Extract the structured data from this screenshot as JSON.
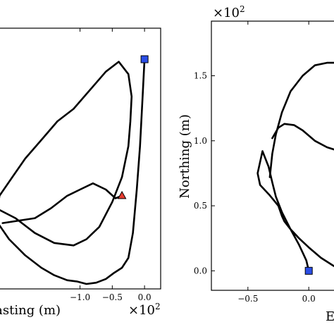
{
  "chart_data": [
    {
      "type": "line",
      "title": "",
      "xlabel": "Easting (m)",
      "ylabel": "",
      "x_offset_label": "×10",
      "x_offset_exp": "2",
      "xlim": [
        -2.35,
        0.25
      ],
      "ylim": [
        -0.85,
        1.25
      ],
      "x_ticks": [
        -1.0,
        -0.5,
        0.0
      ],
      "x_tick_labels": [
        "−1.0",
        "−0.5",
        "0.0"
      ],
      "y_ticks": [],
      "grid": false,
      "series": [
        {
          "x": [
            0.0,
            -0.03,
            -0.07,
            -0.12,
            -0.18,
            -0.25,
            -0.35,
            -0.47,
            -0.6,
            -0.75,
            -0.9,
            -1.05,
            -1.2,
            -1.4,
            -1.6,
            -1.85,
            -2.1,
            -2.3,
            -2.25,
            -2.05,
            -1.85,
            -1.6,
            -1.35,
            -1.1,
            -0.85,
            -0.6,
            -0.4,
            -0.25,
            -0.2,
            -0.22,
            -0.25,
            -0.35,
            -0.5,
            -0.7,
            -0.9,
            -1.1,
            -1.4,
            -1.7,
            -2.0,
            -2.3
          ],
          "y": [
            1.0,
            0.7,
            0.3,
            -0.05,
            -0.4,
            -0.6,
            -0.68,
            -0.72,
            -0.77,
            -0.8,
            -0.81,
            -0.79,
            -0.78,
            -0.74,
            -0.68,
            -0.58,
            -0.45,
            -0.3,
            -0.1,
            0.05,
            0.2,
            0.35,
            0.5,
            0.6,
            0.75,
            0.9,
            0.98,
            0.88,
            0.7,
            0.5,
            0.3,
            0.05,
            -0.15,
            -0.35,
            -0.45,
            -0.5,
            -0.48,
            -0.4,
            -0.28,
            -0.2
          ],
          "color": "#000000"
        },
        {
          "x": [
            -0.35,
            -0.45,
            -0.6,
            -0.8,
            -1.0,
            -1.2,
            -1.45,
            -1.7,
            -1.95,
            -2.2
          ],
          "y": [
            -0.1,
            -0.12,
            -0.05,
            0.0,
            -0.05,
            -0.1,
            -0.2,
            -0.28,
            -0.3,
            -0.32
          ],
          "color": "#000000"
        }
      ],
      "markers": [
        {
          "shape": "square",
          "x": 0.0,
          "y": 1.0,
          "color": "#2b4ee6"
        },
        {
          "shape": "triangle",
          "x": -0.35,
          "y": -0.1,
          "color": "#e53a2e"
        }
      ]
    },
    {
      "type": "line",
      "title": "",
      "xlabel": "E",
      "ylabel": "Northing (m)",
      "y_offset_label": "×10",
      "y_offset_exp": "2",
      "xlim": [
        -0.8,
        0.3
      ],
      "ylim": [
        -0.15,
        1.92
      ],
      "x_ticks": [
        -0.5,
        0.0
      ],
      "x_tick_labels": [
        "−0.5",
        "0.0"
      ],
      "y_ticks": [
        0.0,
        0.5,
        1.0,
        1.5
      ],
      "y_tick_labels": [
        "0.0",
        "0.5",
        "1.0",
        "1.5"
      ],
      "grid": false,
      "series": [
        {
          "x": [
            0.0,
            -0.02,
            -0.08,
            -0.15,
            -0.22,
            -0.27,
            -0.3,
            -0.33,
            -0.38,
            -0.42,
            -0.4,
            -0.32,
            -0.25,
            -0.22,
            -0.2,
            -0.15,
            -0.08,
            0.0,
            0.1,
            0.2,
            0.28
          ],
          "y": [
            0.0,
            0.08,
            0.2,
            0.32,
            0.45,
            0.57,
            0.68,
            0.8,
            0.92,
            0.75,
            0.66,
            0.58,
            0.5,
            0.42,
            0.38,
            0.32,
            0.25,
            0.18,
            0.1,
            0.04,
            0.0
          ],
          "color": "#000000"
        },
        {
          "x": [
            -0.32,
            -0.3,
            -0.27,
            -0.22,
            -0.15,
            -0.05,
            0.05,
            0.15,
            0.25,
            0.28
          ],
          "y": [
            0.72,
            0.9,
            1.05,
            1.22,
            1.38,
            1.5,
            1.58,
            1.6,
            1.6,
            1.58
          ],
          "color": "#000000"
        },
        {
          "x": [
            -0.3,
            -0.25,
            -0.2,
            -0.12,
            -0.05,
            0.05,
            0.15,
            0.25,
            0.28
          ],
          "y": [
            1.02,
            1.1,
            1.13,
            1.12,
            1.08,
            1.0,
            0.95,
            0.92,
            0.9
          ],
          "color": "#000000"
        }
      ],
      "markers": [
        {
          "shape": "square",
          "x": 0.0,
          "y": 0.0,
          "color": "#2b4ee6"
        }
      ]
    }
  ]
}
